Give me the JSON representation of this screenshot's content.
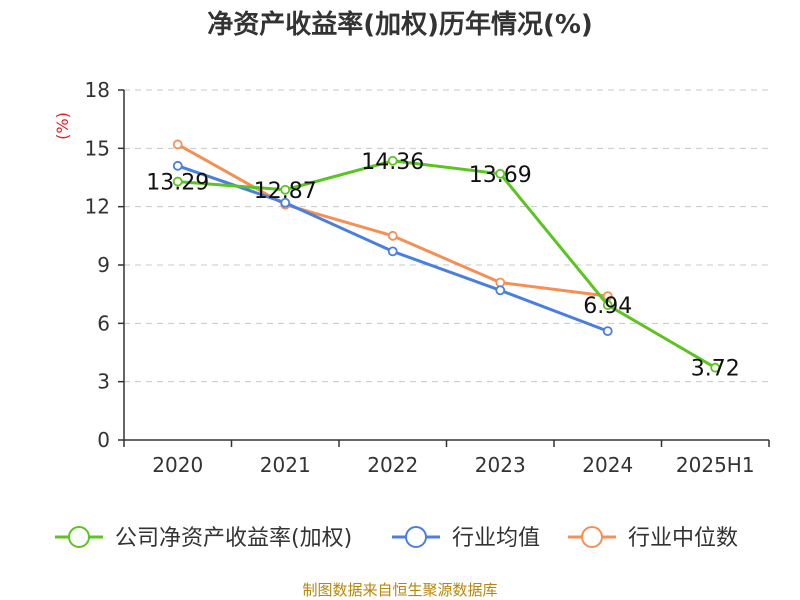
{
  "chart_data": {
    "type": "line",
    "title": "净资产收益率(加权)历年情况(%)",
    "ylabel": "(%)",
    "xlabel": "",
    "categories": [
      "2020",
      "2021",
      "2022",
      "2023",
      "2024",
      "2025H1"
    ],
    "ylim": [
      0,
      18
    ],
    "yticks": [
      0,
      3,
      6,
      9,
      12,
      15,
      18
    ],
    "grid": true,
    "legend_position": "bottom",
    "series": [
      {
        "name": "公司净资产收益率(加权)",
        "color": "#5cc421",
        "values": [
          13.29,
          12.87,
          14.36,
          13.69,
          6.94,
          3.72
        ],
        "labels": [
          "13.29",
          "12.87",
          "14.36",
          "13.69",
          "6.94",
          "3.72"
        ]
      },
      {
        "name": "行业均值",
        "color": "#4a7fdd",
        "values": [
          14.1,
          12.2,
          9.7,
          7.7,
          5.6,
          null
        ]
      },
      {
        "name": "行业中位数",
        "color": "#f59055",
        "values": [
          15.2,
          12.1,
          10.5,
          8.1,
          7.4,
          null
        ]
      }
    ]
  },
  "source": "制图数据来自恒生聚源数据库"
}
